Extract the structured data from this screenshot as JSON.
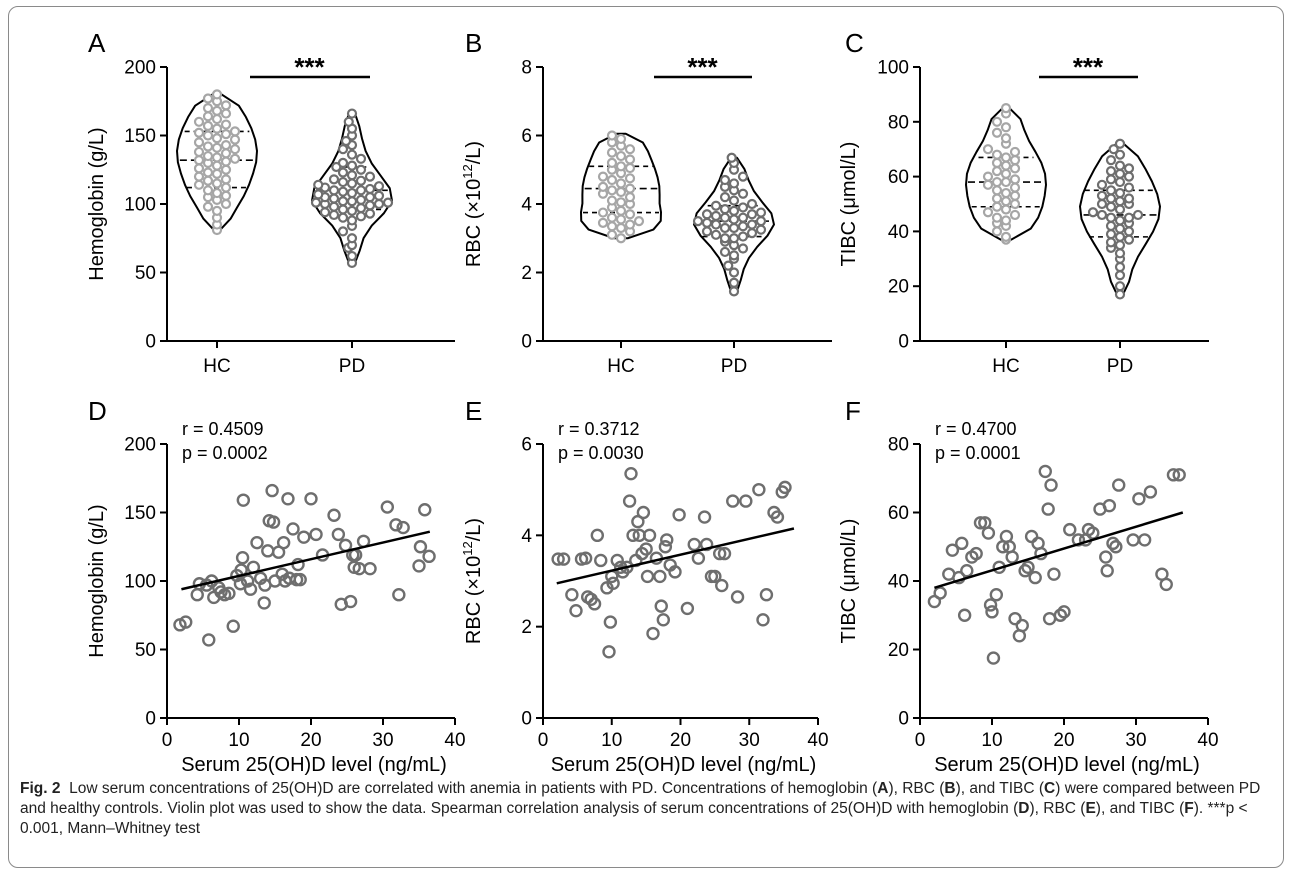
{
  "chart_data": [
    {
      "type": "violin",
      "panel": "A",
      "categories": [
        "HC",
        "PD"
      ],
      "ylabel": "Hemoglobin (g/L)",
      "ylim": [
        0,
        200
      ],
      "yticks": [
        0,
        50,
        100,
        150,
        200
      ],
      "significance": "***",
      "colors": {
        "HC": "#a6a6a6",
        "PD": "#6e6e6e"
      },
      "range": {
        "HC": [
          81,
          180
        ],
        "PD": [
          57,
          166
        ]
      },
      "quartiles": {
        "HC": [
          112,
          132,
          153
        ],
        "PD": [
          96,
          110,
          127
        ]
      },
      "series": [
        {
          "name": "HC",
          "values": [
            81,
            85,
            90,
            95,
            98,
            100,
            103,
            105,
            106,
            108,
            110,
            112,
            114,
            115,
            117,
            118,
            120,
            122,
            123,
            125,
            126,
            128,
            130,
            131,
            132,
            133,
            134,
            135,
            137,
            138,
            140,
            141,
            142,
            143,
            145,
            147,
            148,
            150,
            151,
            152,
            153,
            155,
            157,
            158,
            160,
            162,
            164,
            166,
            168,
            170,
            172,
            175,
            177,
            180
          ]
        },
        {
          "name": "PD",
          "values": [
            57,
            62,
            68,
            70,
            75,
            80,
            84,
            88,
            90,
            91,
            92,
            93,
            94,
            95,
            96,
            97,
            98,
            99,
            100,
            100,
            101,
            101,
            102,
            102,
            103,
            104,
            105,
            105,
            106,
            107,
            108,
            109,
            110,
            110,
            111,
            112,
            113,
            114,
            115,
            116,
            117,
            118,
            120,
            121,
            123,
            125,
            127,
            128,
            130,
            133,
            136,
            140,
            143,
            146,
            150,
            155,
            160,
            166
          ]
        }
      ]
    },
    {
      "type": "violin",
      "panel": "B",
      "categories": [
        "HC",
        "PD"
      ],
      "ylabel": "RBC (×10",
      "ylabel_sup": "12",
      "ylabel_end": "/L)",
      "ylim": [
        0,
        8
      ],
      "yticks": [
        0,
        2,
        4,
        6,
        8
      ],
      "significance": "***",
      "colors": {
        "HC": "#a6a6a6",
        "PD": "#6e6e6e"
      },
      "range": {
        "HC": [
          3.0,
          6.05
        ],
        "PD": [
          1.45,
          5.35
        ]
      },
      "quartiles": {
        "HC": [
          3.75,
          4.45,
          5.1
        ],
        "PD": [
          3.05,
          3.5,
          3.95
        ]
      },
      "series": [
        {
          "name": "HC",
          "values": [
            3.0,
            3.1,
            3.2,
            3.3,
            3.35,
            3.4,
            3.45,
            3.5,
            3.55,
            3.6,
            3.7,
            3.75,
            3.8,
            3.9,
            4.0,
            4.05,
            4.1,
            4.2,
            4.3,
            4.35,
            4.4,
            4.45,
            4.5,
            4.6,
            4.7,
            4.75,
            4.8,
            4.9,
            5.0,
            5.05,
            5.1,
            5.2,
            5.3,
            5.4,
            5.5,
            5.6,
            5.7,
            5.8,
            5.9,
            6.0
          ]
        },
        {
          "name": "PD",
          "values": [
            1.45,
            1.7,
            2.0,
            2.2,
            2.4,
            2.5,
            2.6,
            2.7,
            2.8,
            2.9,
            3.0,
            3.0,
            3.05,
            3.1,
            3.15,
            3.2,
            3.25,
            3.3,
            3.3,
            3.35,
            3.4,
            3.4,
            3.45,
            3.5,
            3.5,
            3.55,
            3.6,
            3.6,
            3.65,
            3.7,
            3.7,
            3.75,
            3.8,
            3.85,
            3.9,
            3.95,
            4.0,
            4.1,
            4.2,
            4.3,
            4.4,
            4.5,
            4.6,
            4.7,
            4.8,
            5.0,
            5.2,
            5.35
          ]
        }
      ]
    },
    {
      "type": "violin",
      "panel": "C",
      "categories": [
        "HC",
        "PD"
      ],
      "ylabel": "TIBC (μmol/L)",
      "ylim": [
        0,
        100
      ],
      "yticks": [
        0,
        20,
        40,
        60,
        80,
        100
      ],
      "significance": "***",
      "colors": {
        "HC": "#a6a6a6",
        "PD": "#6e6e6e"
      },
      "range": {
        "HC": [
          37,
          85
        ],
        "PD": [
          17,
          72
        ]
      },
      "quartiles": {
        "HC": [
          49,
          58,
          67
        ],
        "PD": [
          38,
          46,
          55
        ]
      },
      "series": [
        {
          "name": "HC",
          "values": [
            37,
            38,
            40,
            42,
            43,
            44,
            45,
            46,
            47,
            48,
            49,
            50,
            51,
            52,
            53,
            54,
            55,
            56,
            57,
            58,
            58,
            59,
            60,
            61,
            62,
            63,
            64,
            65,
            66,
            67,
            68,
            69,
            70,
            72,
            74,
            76,
            78,
            80,
            83,
            85
          ]
        },
        {
          "name": "PD",
          "values": [
            17,
            20,
            24,
            27,
            30,
            32,
            34,
            35,
            36,
            37,
            38,
            39,
            40,
            41,
            42,
            43,
            44,
            45,
            45,
            46,
            46,
            47,
            48,
            49,
            50,
            50,
            51,
            52,
            52,
            53,
            54,
            55,
            56,
            57,
            58,
            59,
            60,
            61,
            62,
            63,
            64,
            66,
            68,
            70,
            72
          ]
        }
      ]
    },
    {
      "type": "scatter",
      "panel": "D",
      "xlabel": "Serum 25(OH)D level (ng/mL)",
      "ylabel": "Hemoglobin (g/L)",
      "xlim": [
        0,
        40
      ],
      "ylim": [
        0,
        200
      ],
      "xticks": [
        0,
        10,
        20,
        30,
        40
      ],
      "yticks": [
        0,
        50,
        100,
        150,
        200
      ],
      "r_text": "r = 0.4509",
      "p_text": "p = 0.0002",
      "fit": {
        "x": [
          2,
          36.5
        ],
        "y": [
          94,
          136
        ]
      },
      "points": [
        [
          1.8,
          68
        ],
        [
          2.6,
          70
        ],
        [
          4.2,
          90
        ],
        [
          4.5,
          98
        ],
        [
          5.5,
          97
        ],
        [
          5.8,
          57
        ],
        [
          6.2,
          100
        ],
        [
          6.5,
          88
        ],
        [
          7.2,
          95
        ],
        [
          7.5,
          92
        ],
        [
          8,
          90
        ],
        [
          8.6,
          91
        ],
        [
          9.2,
          67
        ],
        [
          9.7,
          104
        ],
        [
          10.2,
          98
        ],
        [
          10.3,
          108
        ],
        [
          10.5,
          117
        ],
        [
          10.6,
          159
        ],
        [
          11.2,
          100
        ],
        [
          11.6,
          94
        ],
        [
          12,
          110
        ],
        [
          12.5,
          128
        ],
        [
          13,
          102
        ],
        [
          13.5,
          84
        ],
        [
          13.6,
          97
        ],
        [
          14,
          122
        ],
        [
          14.2,
          144
        ],
        [
          14.6,
          166
        ],
        [
          14.8,
          143
        ],
        [
          15,
          100
        ],
        [
          15.5,
          121
        ],
        [
          16,
          105
        ],
        [
          16.2,
          128
        ],
        [
          16.4,
          100
        ],
        [
          16.8,
          160
        ],
        [
          17,
          102
        ],
        [
          17.5,
          138
        ],
        [
          18,
          101
        ],
        [
          18.2,
          112
        ],
        [
          18.5,
          101
        ],
        [
          19,
          132
        ],
        [
          20,
          160
        ],
        [
          20.7,
          134
        ],
        [
          21.6,
          119
        ],
        [
          23.2,
          148
        ],
        [
          23.8,
          134
        ],
        [
          24.2,
          83
        ],
        [
          24.8,
          126
        ],
        [
          25.5,
          85
        ],
        [
          25.8,
          119
        ],
        [
          26,
          110
        ],
        [
          26.2,
          119
        ],
        [
          26.7,
          109
        ],
        [
          27.3,
          129
        ],
        [
          28.2,
          109
        ],
        [
          30.6,
          154
        ],
        [
          31.8,
          141
        ],
        [
          32.2,
          90
        ],
        [
          32.8,
          139
        ],
        [
          35,
          111
        ],
        [
          35.2,
          125
        ],
        [
          35.8,
          152
        ],
        [
          36.4,
          118
        ]
      ]
    },
    {
      "type": "scatter",
      "panel": "E",
      "xlabel": "Serum 25(OH)D level (ng/mL)",
      "ylabel": "RBC (×10",
      "ylabel_sup": "12",
      "ylabel_end": "/L)",
      "xlim": [
        0,
        40
      ],
      "ylim": [
        0,
        6
      ],
      "xticks": [
        0,
        10,
        20,
        30,
        40
      ],
      "yticks": [
        0,
        2,
        4,
        6
      ],
      "r_text": "r = 0.3712",
      "p_text": "p = 0.0030",
      "fit": {
        "x": [
          2,
          36.5
        ],
        "y": [
          2.95,
          4.15
        ]
      },
      "points": [
        [
          2.2,
          3.48
        ],
        [
          3,
          3.48
        ],
        [
          4.2,
          2.7
        ],
        [
          4.8,
          2.35
        ],
        [
          5.6,
          3.48
        ],
        [
          6.2,
          3.5
        ],
        [
          6.5,
          2.65
        ],
        [
          7,
          2.6
        ],
        [
          7.5,
          2.5
        ],
        [
          7.9,
          4.0
        ],
        [
          8.4,
          3.45
        ],
        [
          9.3,
          2.85
        ],
        [
          9.6,
          1.45
        ],
        [
          9.8,
          2.1
        ],
        [
          10,
          3.1
        ],
        [
          10.2,
          2.95
        ],
        [
          10.8,
          3.45
        ],
        [
          11.3,
          3.3
        ],
        [
          11.6,
          3.2
        ],
        [
          12.2,
          3.3
        ],
        [
          12.6,
          4.75
        ],
        [
          12.8,
          5.35
        ],
        [
          13.1,
          4.0
        ],
        [
          13.5,
          3.45
        ],
        [
          13.8,
          4.3
        ],
        [
          14,
          4.0
        ],
        [
          14.4,
          3.6
        ],
        [
          14.6,
          4.5
        ],
        [
          15,
          3.7
        ],
        [
          15.2,
          3.1
        ],
        [
          15.5,
          4.0
        ],
        [
          16,
          1.85
        ],
        [
          16.5,
          3.5
        ],
        [
          17,
          3.1
        ],
        [
          17.2,
          2.45
        ],
        [
          17.5,
          2.15
        ],
        [
          17.8,
          3.75
        ],
        [
          18,
          3.9
        ],
        [
          18.5,
          3.35
        ],
        [
          19.2,
          3.2
        ],
        [
          19.8,
          4.45
        ],
        [
          21,
          2.4
        ],
        [
          22,
          3.8
        ],
        [
          22.6,
          3.5
        ],
        [
          23.5,
          4.4
        ],
        [
          23.8,
          3.8
        ],
        [
          24.5,
          3.1
        ],
        [
          25,
          3.1
        ],
        [
          25.7,
          3.6
        ],
        [
          26,
          2.9
        ],
        [
          26.4,
          3.6
        ],
        [
          27.6,
          4.75
        ],
        [
          28.3,
          2.65
        ],
        [
          29.5,
          4.75
        ],
        [
          31.4,
          5.0
        ],
        [
          32,
          2.15
        ],
        [
          32.5,
          2.7
        ],
        [
          33.6,
          4.5
        ],
        [
          34.1,
          4.4
        ],
        [
          34.8,
          4.95
        ],
        [
          35.2,
          5.05
        ]
      ]
    },
    {
      "type": "scatter",
      "panel": "F",
      "xlabel": "Serum 25(OH)D level (ng/mL)",
      "ylabel": "TIBC (μmol/L)",
      "xlim": [
        0,
        40
      ],
      "ylim": [
        0,
        80
      ],
      "xticks": [
        0,
        10,
        20,
        30,
        40
      ],
      "yticks": [
        0,
        20,
        40,
        60,
        80
      ],
      "r_text": "r = 0.4700",
      "p_text": "p = 0.0001",
      "fit": {
        "x": [
          2,
          36.5
        ],
        "y": [
          38,
          60
        ]
      },
      "points": [
        [
          2,
          34
        ],
        [
          2.8,
          36.5
        ],
        [
          4,
          42
        ],
        [
          4.5,
          49
        ],
        [
          5.4,
          41
        ],
        [
          5.8,
          51
        ],
        [
          6.2,
          30
        ],
        [
          6.5,
          43
        ],
        [
          7.2,
          47
        ],
        [
          7.8,
          48
        ],
        [
          8.4,
          57
        ],
        [
          9,
          57
        ],
        [
          9.5,
          54
        ],
        [
          9.8,
          33
        ],
        [
          10,
          31
        ],
        [
          10.2,
          17.5
        ],
        [
          10.6,
          36
        ],
        [
          11,
          44
        ],
        [
          11.5,
          50
        ],
        [
          12,
          53
        ],
        [
          12.4,
          50
        ],
        [
          12.8,
          47
        ],
        [
          13.2,
          29
        ],
        [
          13.8,
          24
        ],
        [
          14.2,
          27
        ],
        [
          14.6,
          43
        ],
        [
          15,
          44
        ],
        [
          15.5,
          53
        ],
        [
          16,
          41
        ],
        [
          16.4,
          51
        ],
        [
          16.8,
          48
        ],
        [
          17.4,
          72
        ],
        [
          17.8,
          61
        ],
        [
          18,
          29
        ],
        [
          18.2,
          68
        ],
        [
          18.6,
          42
        ],
        [
          19.5,
          30
        ],
        [
          20,
          31
        ],
        [
          20.8,
          55
        ],
        [
          22,
          52
        ],
        [
          23,
          52
        ],
        [
          23.4,
          55
        ],
        [
          24,
          54
        ],
        [
          25,
          61
        ],
        [
          25.8,
          47
        ],
        [
          26,
          43
        ],
        [
          26.3,
          62
        ],
        [
          26.8,
          51
        ],
        [
          27.2,
          50
        ],
        [
          27.6,
          68
        ],
        [
          29.6,
          52
        ],
        [
          30.4,
          64
        ],
        [
          31.2,
          52
        ],
        [
          32,
          66
        ],
        [
          33.6,
          42
        ],
        [
          34.2,
          39
        ],
        [
          35.2,
          71
        ],
        [
          36,
          71
        ]
      ]
    }
  ],
  "panel_labels": [
    "A",
    "B",
    "C",
    "D",
    "E",
    "F"
  ],
  "caption": {
    "fig_label": "Fig. 2",
    "s1": "Low serum concentrations of 25(OH)D are correlated with anemia in patients with PD. Concentrations of hemoglobin (",
    "bA": "A",
    "s2": "), RBC (",
    "bB": "B",
    "s3": "), and TIBC (",
    "bC": "C",
    "s4": ") were compared between PD and healthy controls. Violin plot was used to show the data. Spearman correlation analysis of serum concentrations of 25(OH)D with hemoglobin (",
    "bD": "D",
    "s5": "), RBC (",
    "bE": "E",
    "s6": "), and TIBC (",
    "bF": "F",
    "s7": "). ***p < 0.001, Mann–Whitney test"
  }
}
